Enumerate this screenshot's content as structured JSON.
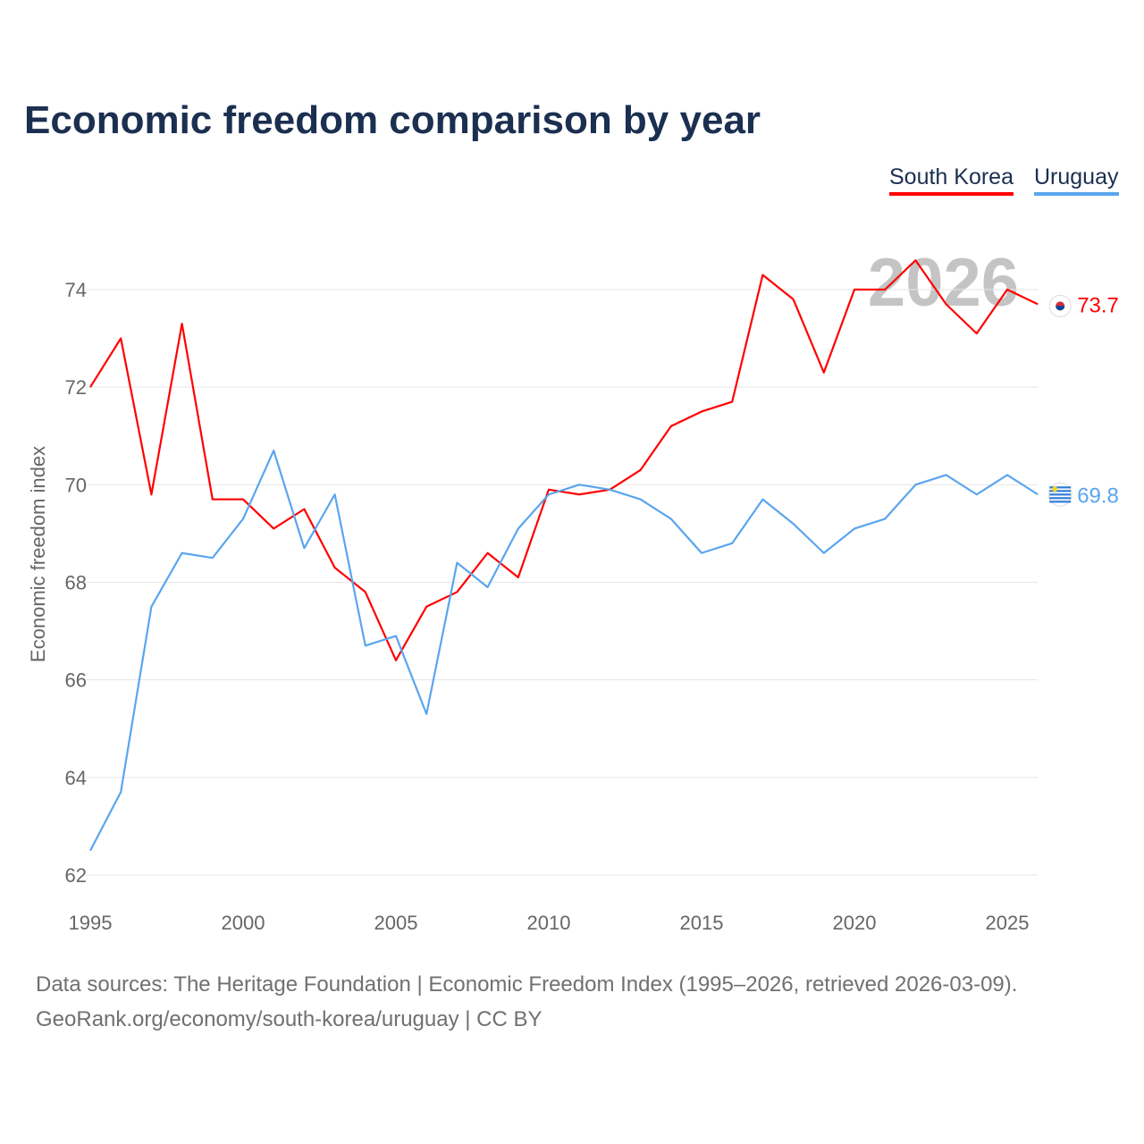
{
  "chart_data": {
    "type": "line",
    "title": "Economic freedom comparison by year",
    "ylabel": "Economic freedom index",
    "xlabel": "",
    "xlim": [
      1995,
      2026
    ],
    "ylim": [
      62,
      75
    ],
    "x_ticks": [
      1995,
      2000,
      2005,
      2010,
      2015,
      2020,
      2025
    ],
    "y_ticks": [
      62,
      64,
      66,
      68,
      70,
      72,
      74
    ],
    "grid": true,
    "legend_position": "top-right",
    "year_watermark": "2026",
    "x": [
      1995,
      1996,
      1997,
      1998,
      1999,
      2000,
      2001,
      2002,
      2003,
      2004,
      2005,
      2006,
      2007,
      2008,
      2009,
      2010,
      2011,
      2012,
      2013,
      2014,
      2015,
      2016,
      2017,
      2018,
      2019,
      2020,
      2021,
      2022,
      2023,
      2024,
      2025,
      2026
    ],
    "series": [
      {
        "name": "South Korea",
        "color": "#ff0000",
        "end_label": "73.7",
        "values": [
          72.0,
          73.0,
          69.8,
          73.3,
          69.7,
          69.7,
          69.1,
          69.5,
          68.3,
          67.8,
          66.4,
          67.5,
          67.8,
          68.6,
          68.1,
          69.9,
          69.8,
          69.9,
          70.3,
          71.2,
          71.5,
          71.7,
          74.3,
          73.8,
          72.3,
          74.0,
          74.0,
          74.6,
          73.7,
          73.1,
          74.0,
          73.7
        ]
      },
      {
        "name": "Uruguay",
        "color": "#5aa5ee",
        "end_label": "69.8",
        "values": [
          62.5,
          63.7,
          67.5,
          68.6,
          68.5,
          69.3,
          70.7,
          68.7,
          69.8,
          66.7,
          66.9,
          65.3,
          68.4,
          67.9,
          69.1,
          69.8,
          70.0,
          69.9,
          69.7,
          69.3,
          68.6,
          68.8,
          69.7,
          69.2,
          68.6,
          69.1,
          69.3,
          70.0,
          70.2,
          69.8,
          70.2,
          69.8
        ]
      }
    ]
  },
  "footer": {
    "line1": "Data sources: The Heritage Foundation | Economic Freedom Index (1995–2026, retrieved 2026-03-09).",
    "line2": "GeoRank.org/economy/south-korea/uruguay | CC BY"
  }
}
